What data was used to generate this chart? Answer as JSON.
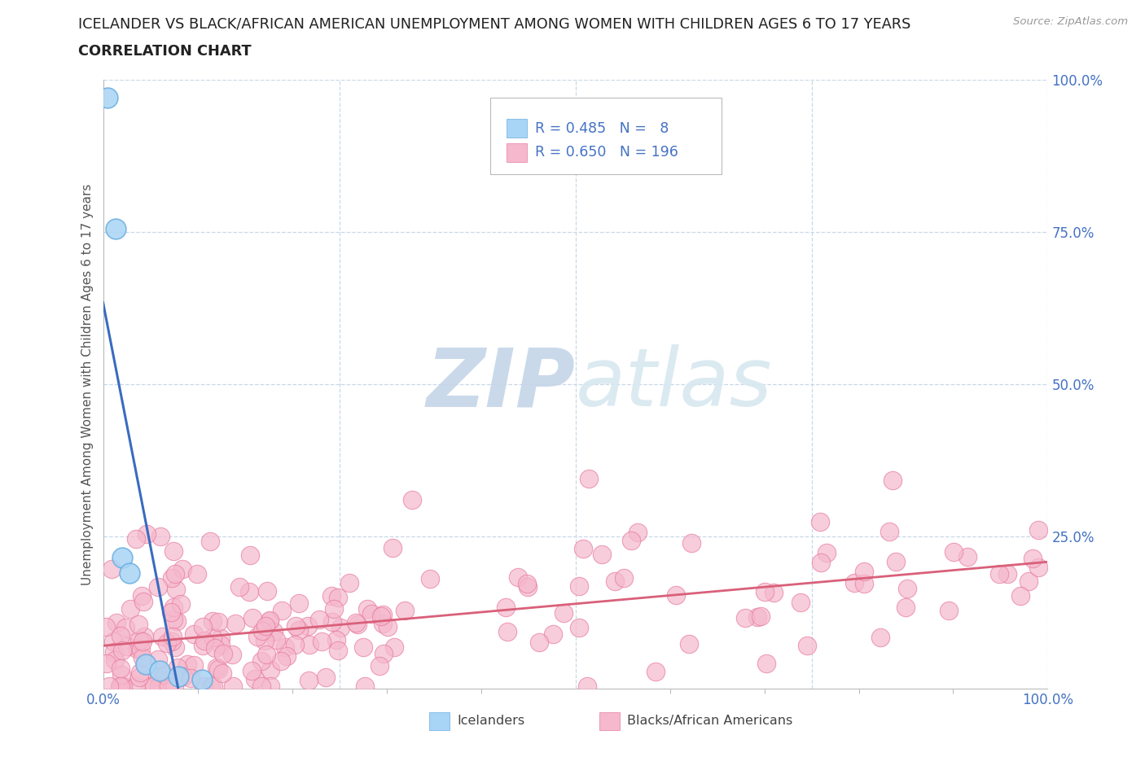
{
  "title_line1": "ICELANDER VS BLACK/AFRICAN AMERICAN UNEMPLOYMENT AMONG WOMEN WITH CHILDREN AGES 6 TO 17 YEARS",
  "title_line2": "CORRELATION CHART",
  "source_text": "Source: ZipAtlas.com",
  "ylabel": "Unemployment Among Women with Children Ages 6 to 17 years",
  "xlim": [
    0.0,
    1.0
  ],
  "ylim": [
    0.0,
    1.0
  ],
  "icelander_fill": "#A8D4F5",
  "icelander_edge": "#6AAEE0",
  "pink_fill": "#F5B8CC",
  "pink_edge": "#E87DA0",
  "blue_line_color": "#3A6BBF",
  "pink_line_color": "#D9607A",
  "watermark_color": "#D8E8F5",
  "legend_R1": "0.485",
  "legend_N1": "8",
  "legend_R2": "0.650",
  "legend_N2": "196",
  "seed": 99,
  "n_black": 196,
  "background_color": "#FFFFFF",
  "grid_color": "#C8D8E8",
  "title_color": "#222222",
  "ylabel_color": "#555555",
  "tick_color": "#4472C4",
  "legend_text_color": "#4472C4",
  "bottom_label_color": "#444444"
}
